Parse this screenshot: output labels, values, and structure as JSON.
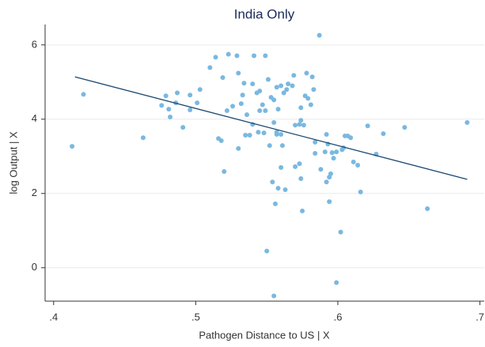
{
  "chart_data": {
    "type": "scatter",
    "title": "India Only",
    "x_label": "Pathogen Distance to US | X",
    "y_label": "log Output | X",
    "x": [
      0.413,
      0.463,
      0.421,
      0.479,
      0.482,
      0.476,
      0.481,
      0.486,
      0.487,
      0.491,
      0.496,
      0.496,
      0.501,
      0.503,
      0.51,
      0.514,
      0.519,
      0.522,
      0.523,
      0.526,
      0.529,
      0.53,
      0.532,
      0.533,
      0.534,
      0.536,
      0.541,
      0.54,
      0.543,
      0.545,
      0.547,
      0.549,
      0.549,
      0.551,
      0.553,
      0.555,
      0.557,
      0.558,
      0.56,
      0.562,
      0.564,
      0.565,
      0.568,
      0.569,
      0.578,
      0.582,
      0.577,
      0.579,
      0.581,
      0.574,
      0.576,
      0.574,
      0.583,
      0.587,
      0.516,
      0.518,
      0.53,
      0.535,
      0.538,
      0.54,
      0.544,
      0.548,
      0.545,
      0.555,
      0.557,
      0.56,
      0.561,
      0.552,
      0.557,
      0.57,
      0.573,
      0.57,
      0.573,
      0.574,
      0.575,
      0.584,
      0.584,
      0.592,
      0.588,
      0.591,
      0.593,
      0.596,
      0.597,
      0.599,
      0.603,
      0.604,
      0.605,
      0.607,
      0.609,
      0.611,
      0.614,
      0.621,
      0.627,
      0.632,
      0.647,
      0.663,
      0.691,
      0.592,
      0.594,
      0.595,
      0.56,
      0.554,
      0.556,
      0.558,
      0.563,
      0.52,
      0.594,
      0.602,
      0.616,
      0.55,
      0.555,
      0.599
    ],
    "values": [
      3.27,
      3.5,
      4.67,
      4.63,
      4.06,
      4.37,
      4.27,
      4.44,
      4.71,
      3.78,
      4.25,
      4.65,
      4.44,
      4.8,
      5.39,
      5.67,
      5.12,
      4.23,
      5.75,
      4.35,
      5.71,
      5.24,
      4.42,
      4.65,
      4.97,
      4.12,
      5.71,
      4.95,
      4.71,
      4.76,
      4.39,
      4.23,
      5.71,
      5.07,
      4.59,
      4.52,
      4.86,
      4.27,
      4.9,
      4.71,
      4.8,
      4.95,
      4.9,
      5.18,
      5.24,
      5.14,
      4.63,
      4.56,
      4.39,
      3.97,
      3.84,
      4.31,
      4.8,
      6.26,
      3.48,
      3.42,
      3.21,
      3.57,
      3.57,
      3.86,
      3.65,
      3.63,
      4.23,
      3.91,
      3.65,
      3.59,
      3.29,
      3.29,
      3.59,
      3.84,
      3.86,
      2.72,
      2.8,
      2.4,
      1.53,
      3.38,
      3.08,
      3.59,
      2.65,
      3.12,
      3.33,
      3.1,
      2.95,
      3.12,
      3.18,
      3.23,
      3.55,
      3.55,
      3.5,
      2.85,
      2.76,
      3.82,
      3.06,
      3.61,
      3.78,
      1.59,
      3.91,
      2.31,
      2.44,
      2.53,
      2.7,
      2.31,
      1.72,
      2.14,
      2.1,
      2.59,
      1.78,
      0.96,
      2.04,
      0.45,
      -0.76,
      -0.4
    ],
    "color": "#7ab8e0",
    "fit": {
      "x": [
        0.415,
        0.691
      ],
      "values": [
        5.14,
        2.38
      ],
      "color": "#1a476f"
    },
    "xlim": [
      0.394,
      0.703
    ],
    "ylim": [
      -0.9,
      6.55
    ],
    "xticks": [
      {
        "value": 0.4,
        "label": ".4"
      },
      {
        "value": 0.5,
        "label": ".5"
      },
      {
        "value": 0.6,
        "label": ".6"
      },
      {
        "value": 0.7,
        "label": ".7"
      }
    ],
    "yticks": [
      0,
      2,
      4,
      6
    ],
    "grid": true
  }
}
